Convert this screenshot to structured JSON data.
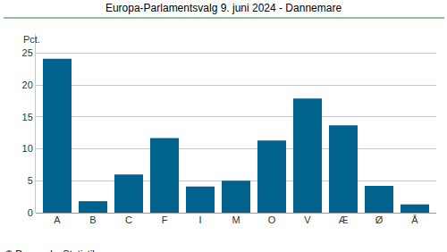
{
  "chart_data": {
    "type": "bar",
    "title": "Europa-Parlamentsvalg 9. juni 2024 - Dannemare",
    "ylabel": "Pct.",
    "source": "© Danmarks Statistik",
    "categories": [
      "A",
      "B",
      "C",
      "F",
      "I",
      "M",
      "O",
      "V",
      "Æ",
      "Ø",
      "Å"
    ],
    "values": [
      24.1,
      1.8,
      6.0,
      11.7,
      4.1,
      5.0,
      11.3,
      17.9,
      13.7,
      4.2,
      1.3
    ],
    "color": "#00628f",
    "ylim": [
      0,
      28
    ],
    "yticks": [
      0,
      5,
      10,
      15,
      20,
      25
    ],
    "grid": true
  }
}
